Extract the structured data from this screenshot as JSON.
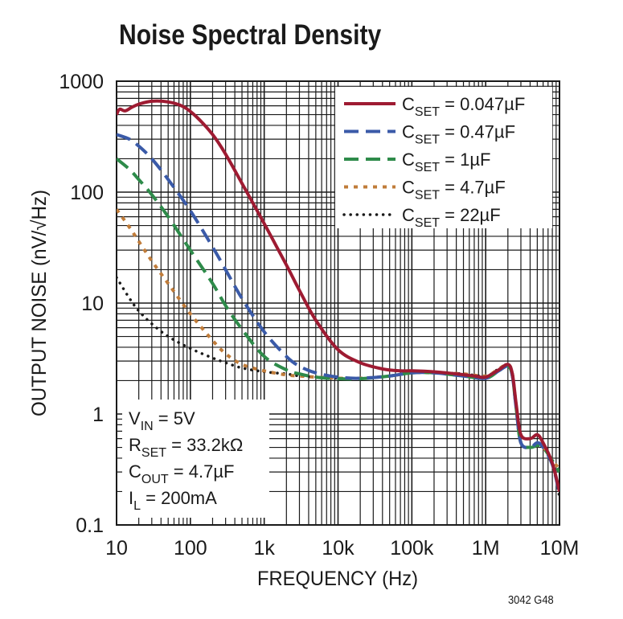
{
  "chart_data": {
    "type": "line",
    "title": "Noise Spectral Density",
    "xlabel": "FREQUENCY (Hz)",
    "ylabel": "OUTPUT NOISE (nV/√Hz)",
    "xscale": "log",
    "yscale": "log",
    "xlim": [
      10,
      10000000
    ],
    "ylim": [
      0.1,
      1000
    ],
    "grid": true,
    "xticks": [
      {
        "value": 10,
        "label": "10"
      },
      {
        "value": 100,
        "label": "100"
      },
      {
        "value": 1000,
        "label": "1k"
      },
      {
        "value": 10000,
        "label": "10k"
      },
      {
        "value": 100000,
        "label": "100k"
      },
      {
        "value": 1000000,
        "label": "1M"
      },
      {
        "value": 10000000,
        "label": "10M"
      }
    ],
    "yticks": [
      {
        "value": 0.1,
        "label": "0.1"
      },
      {
        "value": 1,
        "label": "1"
      },
      {
        "value": 10,
        "label": "10"
      },
      {
        "value": 100,
        "label": "100"
      },
      {
        "value": 1000,
        "label": "1000"
      }
    ],
    "legend_position": "top-right",
    "series": [
      {
        "name": "C",
        "sub": "SET",
        "rest": " = 0.047µF",
        "color": "#9e1b32",
        "style": "solid",
        "points": [
          [
            10,
            500
          ],
          [
            11,
            560
          ],
          [
            13,
            540
          ],
          [
            16,
            580
          ],
          [
            20,
            620
          ],
          [
            30,
            660
          ],
          [
            50,
            650
          ],
          [
            80,
            590
          ],
          [
            120,
            480
          ],
          [
            200,
            330
          ],
          [
            300,
            220
          ],
          [
            500,
            120
          ],
          [
            1000,
            52
          ],
          [
            2000,
            22
          ],
          [
            3000,
            13
          ],
          [
            5000,
            7
          ],
          [
            10000,
            3.8
          ],
          [
            20000,
            2.9
          ],
          [
            40000,
            2.55
          ],
          [
            70000,
            2.45
          ],
          [
            100000,
            2.45
          ],
          [
            200000,
            2.4
          ],
          [
            400000,
            2.3
          ],
          [
            700000,
            2.2
          ],
          [
            1000000,
            2.15
          ],
          [
            1500000,
            2.5
          ],
          [
            2000000,
            2.8
          ],
          [
            2300000,
            2.3
          ],
          [
            2600000,
            1.2
          ],
          [
            3000000,
            0.65
          ],
          [
            4000000,
            0.6
          ],
          [
            5000000,
            0.65
          ],
          [
            6000000,
            0.55
          ],
          [
            8000000,
            0.36
          ],
          [
            10000000,
            0.2
          ]
        ]
      },
      {
        "name": "C",
        "sub": "SET",
        "rest": " = 0.47µF",
        "color": "#3a5aa8",
        "style": "dash",
        "points": [
          [
            10,
            330
          ],
          [
            15,
            300
          ],
          [
            20,
            260
          ],
          [
            30,
            200
          ],
          [
            50,
            130
          ],
          [
            100,
            68
          ],
          [
            200,
            32
          ],
          [
            300,
            20
          ],
          [
            500,
            11
          ],
          [
            1000,
            5.5
          ],
          [
            2000,
            3.3
          ],
          [
            3000,
            2.7
          ],
          [
            5000,
            2.35
          ],
          [
            10000,
            2.15
          ],
          [
            20000,
            2.1
          ],
          [
            50000,
            2.2
          ],
          [
            100000,
            2.35
          ],
          [
            200000,
            2.35
          ],
          [
            500000,
            2.2
          ],
          [
            1000000,
            2.1
          ],
          [
            1500000,
            2.45
          ],
          [
            2000000,
            2.7
          ],
          [
            2300000,
            2.2
          ],
          [
            2600000,
            1.1
          ],
          [
            3000000,
            0.55
          ],
          [
            4000000,
            0.5
          ],
          [
            5000000,
            0.55
          ],
          [
            6000000,
            0.5
          ],
          [
            8000000,
            0.35
          ],
          [
            10000000,
            0.19
          ]
        ]
      },
      {
        "name": "C",
        "sub": "SET",
        "rest": " = 1µF",
        "color": "#2e8b4a",
        "style": "dash",
        "points": [
          [
            10,
            200
          ],
          [
            15,
            160
          ],
          [
            20,
            130
          ],
          [
            30,
            95
          ],
          [
            50,
            60
          ],
          [
            100,
            30
          ],
          [
            200,
            15
          ],
          [
            300,
            9.5
          ],
          [
            500,
            5.8
          ],
          [
            1000,
            3.3
          ],
          [
            2000,
            2.5
          ],
          [
            3000,
            2.3
          ],
          [
            5000,
            2.15
          ],
          [
            10000,
            2.08
          ],
          [
            20000,
            2.08
          ],
          [
            50000,
            2.2
          ],
          [
            100000,
            2.35
          ],
          [
            200000,
            2.35
          ],
          [
            500000,
            2.2
          ],
          [
            1000000,
            2.1
          ],
          [
            1500000,
            2.45
          ],
          [
            2000000,
            2.7
          ],
          [
            2300000,
            2.2
          ],
          [
            2600000,
            1.1
          ],
          [
            3000000,
            0.55
          ],
          [
            4000000,
            0.5
          ],
          [
            5000000,
            0.52
          ],
          [
            6000000,
            0.5
          ],
          [
            8000000,
            0.38
          ],
          [
            10000000,
            0.3
          ]
        ]
      },
      {
        "name": "C",
        "sub": "SET",
        "rest": " = 4.7µF",
        "color": "#c07c3a",
        "style": "dot",
        "points": [
          [
            10,
            70
          ],
          [
            15,
            48
          ],
          [
            20,
            36
          ],
          [
            30,
            24
          ],
          [
            50,
            15
          ],
          [
            100,
            8
          ],
          [
            200,
            4.6
          ],
          [
            300,
            3.5
          ],
          [
            500,
            2.8
          ],
          [
            1000,
            2.45
          ],
          [
            2000,
            2.25
          ],
          [
            3000,
            2.2
          ],
          [
            5000,
            2.15
          ],
          [
            10000,
            2.1
          ],
          [
            20000,
            2.1
          ],
          [
            50000,
            2.2
          ],
          [
            100000,
            2.35
          ],
          [
            200000,
            2.35
          ],
          [
            500000,
            2.3
          ],
          [
            1000000,
            2.2
          ],
          [
            1500000,
            2.55
          ],
          [
            2000000,
            2.8
          ],
          [
            2300000,
            2.3
          ],
          [
            2600000,
            1.15
          ],
          [
            3000000,
            0.55
          ],
          [
            4000000,
            0.5
          ],
          [
            5000000,
            0.52
          ],
          [
            6000000,
            0.5
          ],
          [
            8000000,
            0.38
          ],
          [
            10000000,
            0.32
          ]
        ]
      },
      {
        "name": "C",
        "sub": "SET",
        "rest": " = 22µF",
        "color": "#1a1a1a",
        "style": "fine",
        "points": [
          [
            10,
            17
          ],
          [
            15,
            11
          ],
          [
            20,
            8.5
          ],
          [
            30,
            6.5
          ],
          [
            50,
            5
          ],
          [
            100,
            3.9
          ],
          [
            200,
            3.2
          ],
          [
            300,
            2.9
          ],
          [
            500,
            2.6
          ],
          [
            1000,
            2.4
          ],
          [
            2000,
            2.3
          ],
          [
            3000,
            2.2
          ],
          [
            5000,
            2.15
          ],
          [
            10000,
            2.1
          ],
          [
            20000,
            2.1
          ],
          [
            50000,
            2.2
          ],
          [
            100000,
            2.35
          ],
          [
            200000,
            2.35
          ],
          [
            500000,
            2.3
          ],
          [
            1000000,
            2.2
          ],
          [
            1500000,
            2.55
          ],
          [
            2000000,
            2.8
          ],
          [
            2300000,
            2.3
          ],
          [
            2600000,
            1.15
          ],
          [
            3000000,
            0.55
          ],
          [
            4000000,
            0.5
          ],
          [
            5000000,
            0.52
          ],
          [
            6000000,
            0.5
          ],
          [
            8000000,
            0.36
          ],
          [
            10000000,
            0.18
          ]
        ]
      }
    ],
    "annotation": [
      {
        "main": "V",
        "sub": "IN",
        "rest": " = 5V"
      },
      {
        "main": "R",
        "sub": "SET",
        "rest": " = 33.2kΩ"
      },
      {
        "main": "C",
        "sub": "OUT",
        "rest": " = 4.7µF"
      },
      {
        "main": "I",
        "sub": "L",
        "rest": " = 200mA"
      }
    ]
  },
  "footer": {
    "code": "3042 G48"
  }
}
